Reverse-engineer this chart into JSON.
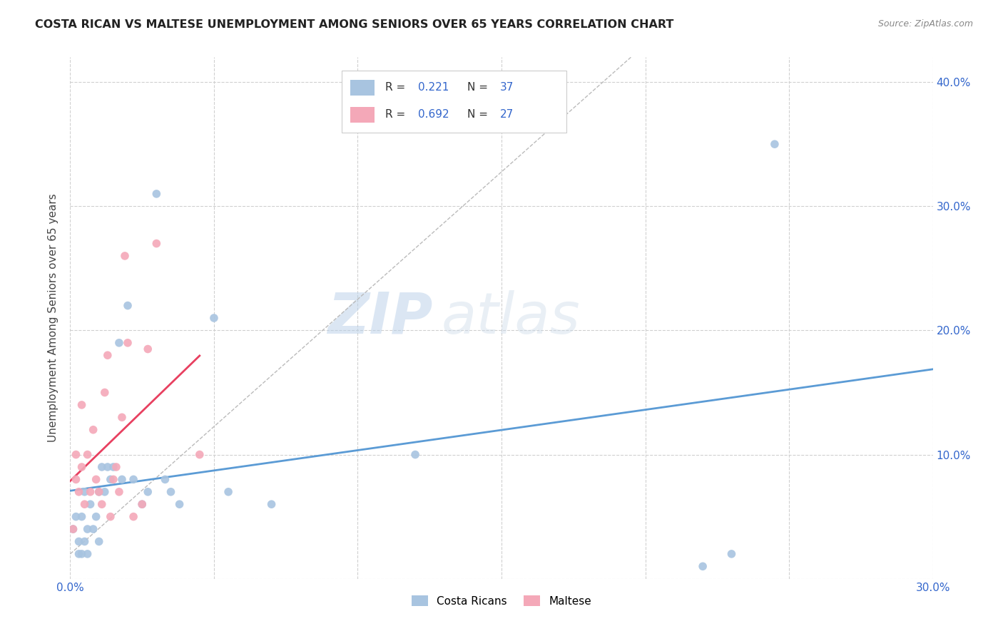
{
  "title": "COSTA RICAN VS MALTESE UNEMPLOYMENT AMONG SENIORS OVER 65 YEARS CORRELATION CHART",
  "source": "Source: ZipAtlas.com",
  "ylabel": "Unemployment Among Seniors over 65 years",
  "xlim": [
    0.0,
    0.3
  ],
  "ylim": [
    0.0,
    0.42
  ],
  "xticks": [
    0.0,
    0.05,
    0.1,
    0.15,
    0.2,
    0.25,
    0.3
  ],
  "yticks": [
    0.0,
    0.1,
    0.2,
    0.3,
    0.4
  ],
  "ytick_labels_right": [
    "",
    "10.0%",
    "20.0%",
    "30.0%",
    "40.0%"
  ],
  "costa_rican_R": 0.221,
  "costa_rican_N": 37,
  "maltese_R": 0.692,
  "maltese_N": 27,
  "costa_rican_color": "#a8c4e0",
  "maltese_color": "#f4a8b8",
  "costa_rican_line_color": "#5b9bd5",
  "maltese_line_color": "#e84060",
  "background_color": "#ffffff",
  "grid_color": "#d0d0d0",
  "watermark_zip": "ZIP",
  "watermark_atlas": "atlas",
  "costa_rican_x": [
    0.001,
    0.002,
    0.003,
    0.003,
    0.004,
    0.004,
    0.005,
    0.005,
    0.006,
    0.006,
    0.007,
    0.008,
    0.009,
    0.01,
    0.01,
    0.011,
    0.012,
    0.013,
    0.014,
    0.015,
    0.017,
    0.018,
    0.02,
    0.022,
    0.025,
    0.027,
    0.03,
    0.033,
    0.035,
    0.038,
    0.05,
    0.055,
    0.07,
    0.12,
    0.22,
    0.23,
    0.245
  ],
  "costa_rican_y": [
    0.04,
    0.05,
    0.02,
    0.03,
    0.02,
    0.05,
    0.03,
    0.07,
    0.02,
    0.04,
    0.06,
    0.04,
    0.05,
    0.03,
    0.07,
    0.09,
    0.07,
    0.09,
    0.08,
    0.09,
    0.19,
    0.08,
    0.22,
    0.08,
    0.06,
    0.07,
    0.31,
    0.08,
    0.07,
    0.06,
    0.21,
    0.07,
    0.06,
    0.1,
    0.01,
    0.02,
    0.35
  ],
  "maltese_x": [
    0.001,
    0.002,
    0.002,
    0.003,
    0.004,
    0.004,
    0.005,
    0.006,
    0.007,
    0.008,
    0.009,
    0.01,
    0.011,
    0.012,
    0.013,
    0.014,
    0.015,
    0.016,
    0.017,
    0.018,
    0.019,
    0.02,
    0.022,
    0.025,
    0.027,
    0.03,
    0.045
  ],
  "maltese_y": [
    0.04,
    0.08,
    0.1,
    0.07,
    0.09,
    0.14,
    0.06,
    0.1,
    0.07,
    0.12,
    0.08,
    0.07,
    0.06,
    0.15,
    0.18,
    0.05,
    0.08,
    0.09,
    0.07,
    0.13,
    0.26,
    0.19,
    0.05,
    0.06,
    0.185,
    0.27,
    0.1
  ]
}
